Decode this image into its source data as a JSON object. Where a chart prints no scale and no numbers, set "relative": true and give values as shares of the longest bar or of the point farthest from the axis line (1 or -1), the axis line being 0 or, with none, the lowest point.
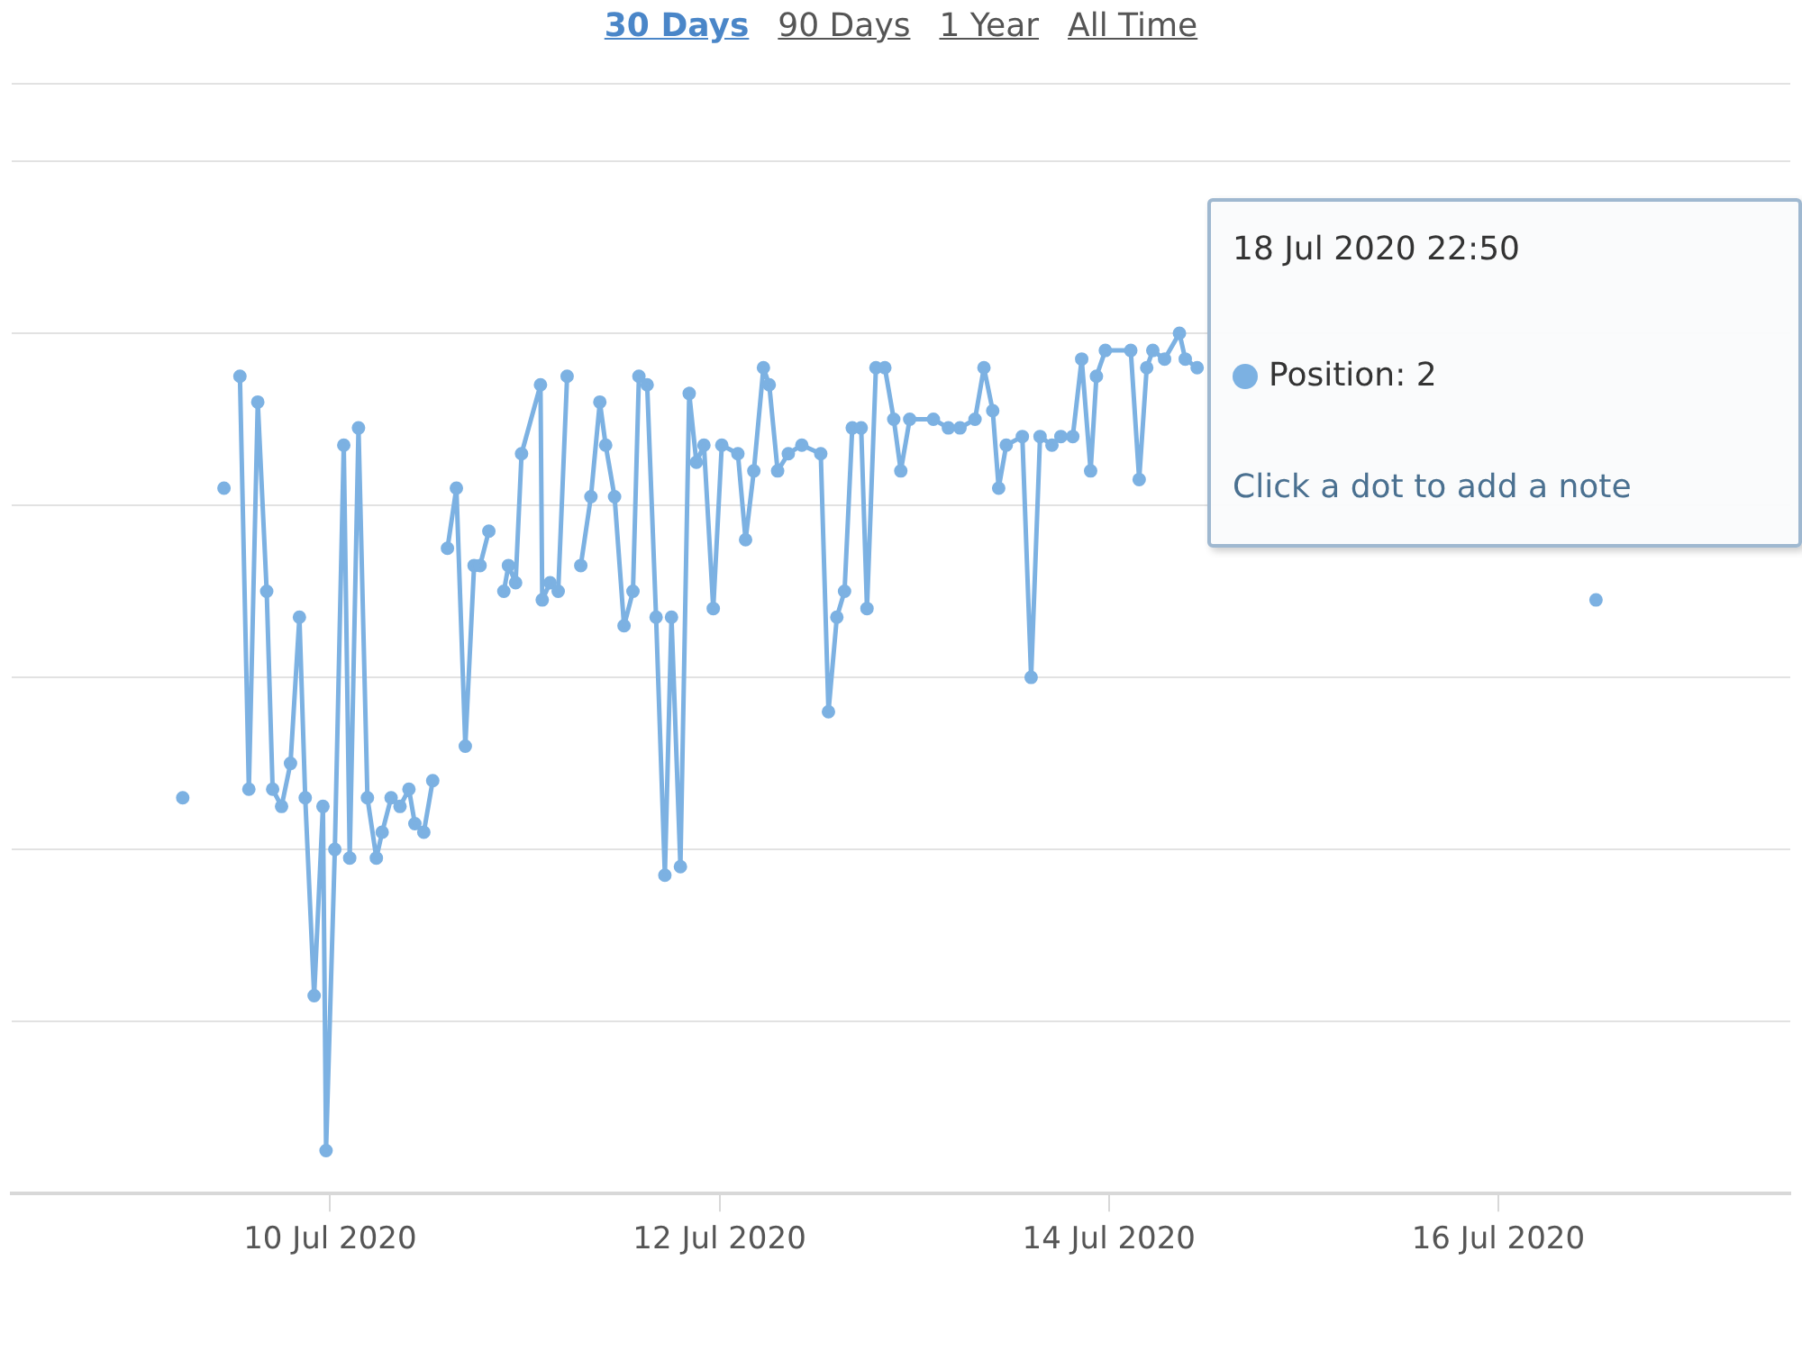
{
  "chart_data": {
    "type": "line",
    "relative": true,
    "grid": "y",
    "legend": false,
    "marker": "circle",
    "line_style": "solid",
    "xlim": [
      "2020-07-08T08:45",
      "2020-07-17T12:00"
    ],
    "xticks": [
      {
        "value": "2020-07-10",
        "label": "10 Jul 2020"
      },
      {
        "value": "2020-07-12",
        "label": "12 Jul 2020"
      },
      {
        "value": "2020-07-14",
        "label": "14 Jul 2020"
      },
      {
        "value": "2020-07-16",
        "label": "16 Jul 2020"
      }
    ],
    "annotations": [
      "30 Days",
      "90 Days",
      "1 Year",
      "All Time",
      "18 Jul 2020 22:50",
      "Position: 2",
      "Click a dot to add a note"
    ],
    "series": [
      {
        "color": "#7cb1e2",
        "x": [
          "2020-07-09T05:50",
          "2020-07-09T08:00",
          "2020-07-09T10:55",
          "2020-07-09T12:00",
          "2020-07-09T12:53",
          "2020-07-09T13:59",
          "2020-07-09T15:05",
          "2020-07-09T16:11",
          "2020-07-09T16:55",
          "2020-07-09T18:01",
          "2020-07-09T19:07",
          "2020-07-09T20:13",
          "2020-07-09T20:56",
          "2020-07-09T22:02",
          "2020-07-09T23:07",
          "2020-07-09T23:30",
          "2020-07-10T00:35",
          "2020-07-10T01:41",
          "2020-07-10T02:25",
          "2020-07-10T03:30",
          "2020-07-10T04:36",
          "2020-07-10T05:42",
          "2020-07-10T06:25",
          "2020-07-10T07:31",
          "2020-07-10T08:37",
          "2020-07-10T09:43",
          "2020-07-10T10:27",
          "2020-07-10T11:33",
          "2020-07-10T12:39",
          "2020-07-10T13:30",
          "2020-07-10T14:28",
          "2020-07-10T15:34",
          "2020-07-10T16:40",
          "2020-07-10T17:45",
          "2020-07-10T18:29",
          "2020-07-10T19:34",
          "2020-07-10T20:30",
          "2020-07-10T21:25",
          "2020-07-10T21:59",
          "2020-07-10T22:52",
          "2020-07-10T23:36",
          "2020-07-11T01:56",
          "2020-07-11T02:09",
          "2020-07-11T03:07",
          "2020-07-11T04:07",
          "2020-07-11T05:13",
          "2020-07-11T06:00",
          "2020-07-11T06:54",
          "2020-07-11T08:09",
          "2020-07-11T09:15",
          "2020-07-11T09:58",
          "2020-07-11T11:04",
          "2020-07-11T12:14",
          "2020-07-11T13:20",
          "2020-07-11T14:04",
          "2020-07-11T15:05",
          "2020-07-11T16:11",
          "2020-07-11T17:16",
          "2020-07-11T18:05",
          "2020-07-11T19:11",
          "2020-07-11T20:16",
          "2020-07-11T21:09",
          "2020-07-11T22:05",
          "2020-07-11T23:14",
          "2020-07-12T00:17",
          "2020-07-12T02:16",
          "2020-07-12T03:13",
          "2020-07-12T04:14",
          "2020-07-12T05:25",
          "2020-07-12T06:08",
          "2020-07-12T07:10",
          "2020-07-12T08:29",
          "2020-07-12T10:09",
          "2020-07-12T12:29",
          "2020-07-12T13:26",
          "2020-07-12T14:28",
          "2020-07-12T15:25",
          "2020-07-12T16:22",
          "2020-07-12T17:28",
          "2020-07-12T18:11",
          "2020-07-12T19:17",
          "2020-07-12T20:23",
          "2020-07-12T21:29",
          "2020-07-12T22:21",
          "2020-07-12T23:27",
          "2020-07-13T02:22",
          "2020-07-13T04:13",
          "2020-07-13T05:39",
          "2020-07-13T07:30",
          "2020-07-13T08:36",
          "2020-07-13T09:41",
          "2020-07-13T10:25",
          "2020-07-13T11:21",
          "2020-07-13T13:20",
          "2020-07-13T14:25",
          "2020-07-13T15:31",
          "2020-07-13T16:59",
          "2020-07-13T18:05",
          "2020-07-13T19:33",
          "2020-07-13T20:39",
          "2020-07-13T21:45",
          "2020-07-13T22:28",
          "2020-07-13T23:34",
          "2020-07-14T02:42",
          "2020-07-14T03:44",
          "2020-07-14T04:40",
          "2020-07-14T05:25",
          "2020-07-14T06:52",
          "2020-07-14T08:42",
          "2020-07-14T09:25",
          "2020-07-14T10:53",
          "2020-07-15T12:00",
          "2020-07-16T12:03"
        ],
        "values": [
          0.46,
          null,
          0.82,
          null,
          0.95,
          0.47,
          0.92,
          0.7,
          0.47,
          0.45,
          0.5,
          0.67,
          0.46,
          0.23,
          0.45,
          0.05,
          0.4,
          0.87,
          0.39,
          0.89,
          0.46,
          0.39,
          0.42,
          0.46,
          0.45,
          0.47,
          0.43,
          0.42,
          0.48,
          null,
          0.75,
          0.82,
          0.52,
          0.73,
          0.73,
          0.77,
          null,
          0.7,
          0.73,
          0.71,
          0.86,
          0.94,
          0.69,
          0.71,
          0.7,
          0.95,
          null,
          0.73,
          0.81,
          0.92,
          0.87,
          0.81,
          0.66,
          0.7,
          0.95,
          0.94,
          0.67,
          0.37,
          0.67,
          0.38,
          0.93,
          0.85,
          0.87,
          0.68,
          0.87,
          0.86,
          0.76,
          0.84,
          0.96,
          0.94,
          0.84,
          0.86,
          0.87,
          0.86,
          0.56,
          0.67,
          0.7,
          0.89,
          0.89,
          0.68,
          0.96,
          0.96,
          0.9,
          0.84,
          0.9,
          0.9,
          0.89,
          0.89,
          0.9,
          0.96,
          0.91,
          0.82,
          0.87,
          0.88,
          0.6,
          0.88,
          0.87,
          0.88,
          0.88,
          0.97,
          0.84,
          0.95,
          0.98,
          0.98,
          0.83,
          0.96,
          0.98,
          0.97,
          1,
          0.97,
          0.96,
          null,
          0.69
        ]
      }
    ]
  }
}
